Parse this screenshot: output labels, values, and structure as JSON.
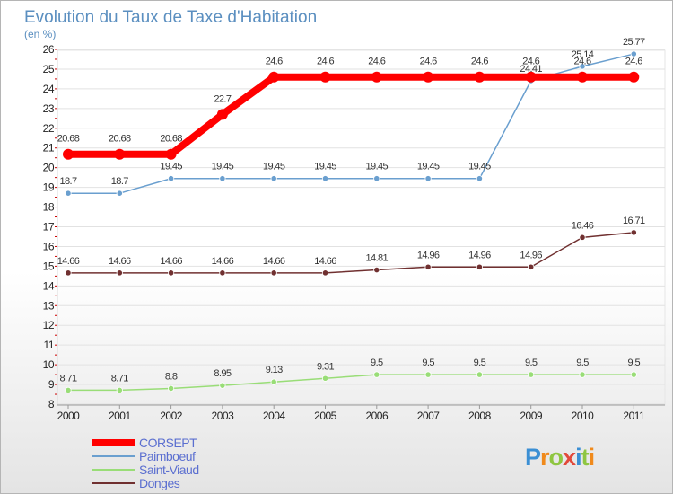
{
  "chart_data": {
    "type": "line",
    "title": "Evolution du Taux de Taxe d'Habitation",
    "subtitle": "(en %)",
    "x": [
      "2000",
      "2001",
      "2002",
      "2003",
      "2004",
      "2005",
      "2006",
      "2007",
      "2008",
      "2009",
      "2010",
      "2011"
    ],
    "yticks": [
      "8",
      "9",
      "10",
      "11",
      "12",
      "13",
      "14",
      "15",
      "16",
      "17",
      "18",
      "19",
      "20",
      "21",
      "22",
      "23",
      "24",
      "25",
      "26"
    ],
    "ylim": [
      8,
      26
    ],
    "grid": "horizontal",
    "legend_position": "bottom-left",
    "series": [
      {
        "name": "CORSEPT",
        "color": "#ff0000",
        "values": [
          20.68,
          20.68,
          20.68,
          22.7,
          24.6,
          24.6,
          24.6,
          24.6,
          24.6,
          24.6,
          24.6,
          24.6
        ],
        "labels": [
          "20.68",
          "20.68",
          "20.68",
          "22.7",
          "24.6",
          "24.6",
          "24.6",
          "24.6",
          "24.6",
          "24.6",
          "24.6",
          "24.6"
        ]
      },
      {
        "name": "Paimboeuf",
        "color": "#6a9fcf",
        "values": [
          18.7,
          18.7,
          19.45,
          19.45,
          19.45,
          19.45,
          19.45,
          19.45,
          19.45,
          24.41,
          25.14,
          25.77
        ],
        "labels": [
          "18.7",
          "18.7",
          "19.45",
          "19.45",
          "19.45",
          "19.45",
          "19.45",
          "19.45",
          "19.45",
          "24.41",
          "25.14",
          "25.77"
        ]
      },
      {
        "name": "Saint-Viaud",
        "color": "#99dd77",
        "values": [
          8.71,
          8.71,
          8.8,
          8.95,
          9.13,
          9.31,
          9.5,
          9.5,
          9.5,
          9.5,
          9.5,
          9.5
        ],
        "labels": [
          "8.71",
          "8.71",
          "8.8",
          "8.95",
          "9.13",
          "9.31",
          "9.5",
          "9.5",
          "9.5",
          "9.5",
          "9.5",
          "9.5"
        ]
      },
      {
        "name": "Donges",
        "color": "#703030",
        "values": [
          14.66,
          14.66,
          14.66,
          14.66,
          14.66,
          14.66,
          14.81,
          14.96,
          14.96,
          14.96,
          16.46,
          16.71
        ],
        "labels": [
          "14.66",
          "14.66",
          "14.66",
          "14.66",
          "14.66",
          "14.66",
          "14.81",
          "14.96",
          "14.96",
          "14.96",
          "16.46",
          "16.71"
        ]
      }
    ]
  },
  "logo": {
    "text": "Proxiti"
  }
}
